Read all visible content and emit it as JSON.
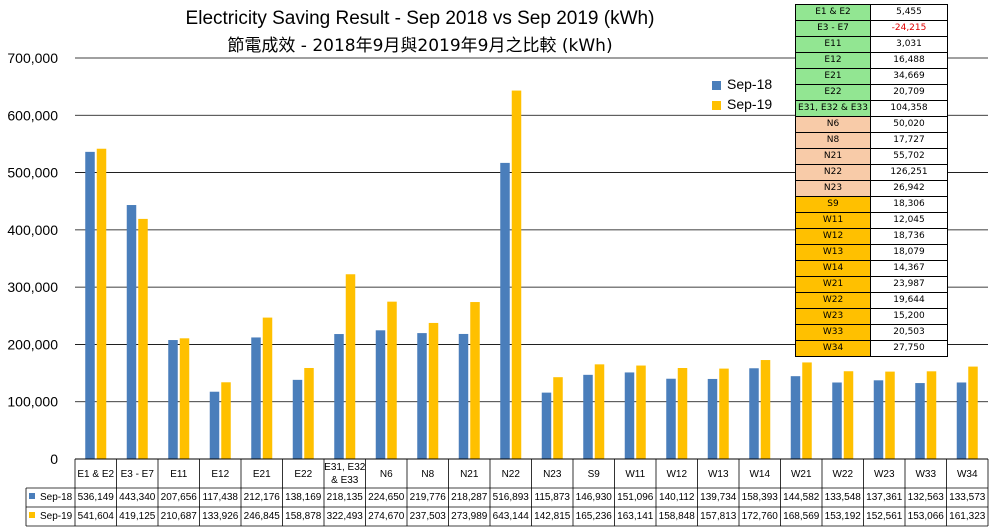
{
  "chart_data": {
    "type": "bar",
    "title": "Electricity Saving Result - Sep 2018 vs Sep 2019 (kWh)",
    "subtitle": "節電成效 - 2018年9月與2019年9月之比較 (kWh)",
    "ylim": [
      0,
      700000
    ],
    "yticks": [
      "0",
      "100,000",
      "200,000",
      "300,000",
      "400,000",
      "500,000",
      "600,000",
      "700,000"
    ],
    "grid": true,
    "legend_position": "top-right",
    "categories": [
      "E1 & E2",
      "E3 - E7",
      "E11",
      "E12",
      "E21",
      "E22",
      "E31, E32 & E33",
      "N6",
      "N8",
      "N21",
      "N22",
      "N23",
      "S9",
      "W11",
      "W12",
      "W13",
      "W14",
      "W21",
      "W22",
      "W23",
      "W33",
      "W34"
    ],
    "series": [
      {
        "name": "Sep-18",
        "color": "#4a7ebb",
        "values": [
          536149,
          443340,
          207656,
          117438,
          212176,
          138169,
          218135,
          224650,
          219776,
          218287,
          516893,
          115873,
          146930,
          151096,
          140112,
          139734,
          158393,
          144582,
          133548,
          137361,
          132563,
          133573
        ],
        "labels": [
          "536,149",
          "443,340",
          "207,656",
          "117,438",
          "212,176",
          "138,169",
          "218,135",
          "224,650",
          "219,776",
          "218,287",
          "516,893",
          "115,873",
          "146,930",
          "151,096",
          "140,112",
          "139,734",
          "158,393",
          "144,582",
          "133,548",
          "137,361",
          "132,563",
          "133,573"
        ]
      },
      {
        "name": "Sep-19",
        "color": "#ffc000",
        "values": [
          541604,
          419125,
          210687,
          133926,
          246845,
          158878,
          322493,
          274670,
          237503,
          273989,
          643144,
          142815,
          165236,
          163141,
          158848,
          157813,
          172760,
          168569,
          153192,
          152561,
          153066,
          161323
        ],
        "labels": [
          "541,604",
          "419,125",
          "210,687",
          "133,926",
          "246,845",
          "158,878",
          "322,493",
          "274,670",
          "237,503",
          "273,989",
          "643,144",
          "142,815",
          "165,236",
          "163,141",
          "158,848",
          "157,813",
          "172,760",
          "168,569",
          "153,192",
          "152,561",
          "153,066",
          "161,323"
        ]
      }
    ]
  },
  "savings_table": {
    "rows": [
      {
        "name": "E1 & E2",
        "value": "5,455",
        "group": "E"
      },
      {
        "name": "E3 - E7",
        "value": "-24,215",
        "group": "E",
        "negative": true
      },
      {
        "name": "E11",
        "value": "3,031",
        "group": "E"
      },
      {
        "name": "E12",
        "value": "16,488",
        "group": "E"
      },
      {
        "name": "E21",
        "value": "34,669",
        "group": "E"
      },
      {
        "name": "E22",
        "value": "20,709",
        "group": "E"
      },
      {
        "name": "E31, E32 & E33",
        "value": "104,358",
        "group": "E"
      },
      {
        "name": "N6",
        "value": "50,020",
        "group": "N"
      },
      {
        "name": "N8",
        "value": "17,727",
        "group": "N"
      },
      {
        "name": "N21",
        "value": "55,702",
        "group": "N"
      },
      {
        "name": "N22",
        "value": "126,251",
        "group": "N"
      },
      {
        "name": "N23",
        "value": "26,942",
        "group": "N"
      },
      {
        "name": "S9",
        "value": "18,306",
        "group": "W"
      },
      {
        "name": "W11",
        "value": "12,045",
        "group": "W"
      },
      {
        "name": "W12",
        "value": "18,736",
        "group": "W"
      },
      {
        "name": "W13",
        "value": "18,079",
        "group": "W"
      },
      {
        "name": "W14",
        "value": "14,367",
        "group": "W"
      },
      {
        "name": "W21",
        "value": "23,987",
        "group": "W"
      },
      {
        "name": "W22",
        "value": "19,644",
        "group": "W"
      },
      {
        "name": "W23",
        "value": "15,200",
        "group": "W"
      },
      {
        "name": "W33",
        "value": "20,503",
        "group": "W"
      },
      {
        "name": "W34",
        "value": "27,750",
        "group": "W"
      }
    ],
    "group_colors": {
      "E": "#92e692",
      "N": "#f8cba8",
      "W": "#ffc000"
    },
    "negative_color": "#e00000"
  }
}
